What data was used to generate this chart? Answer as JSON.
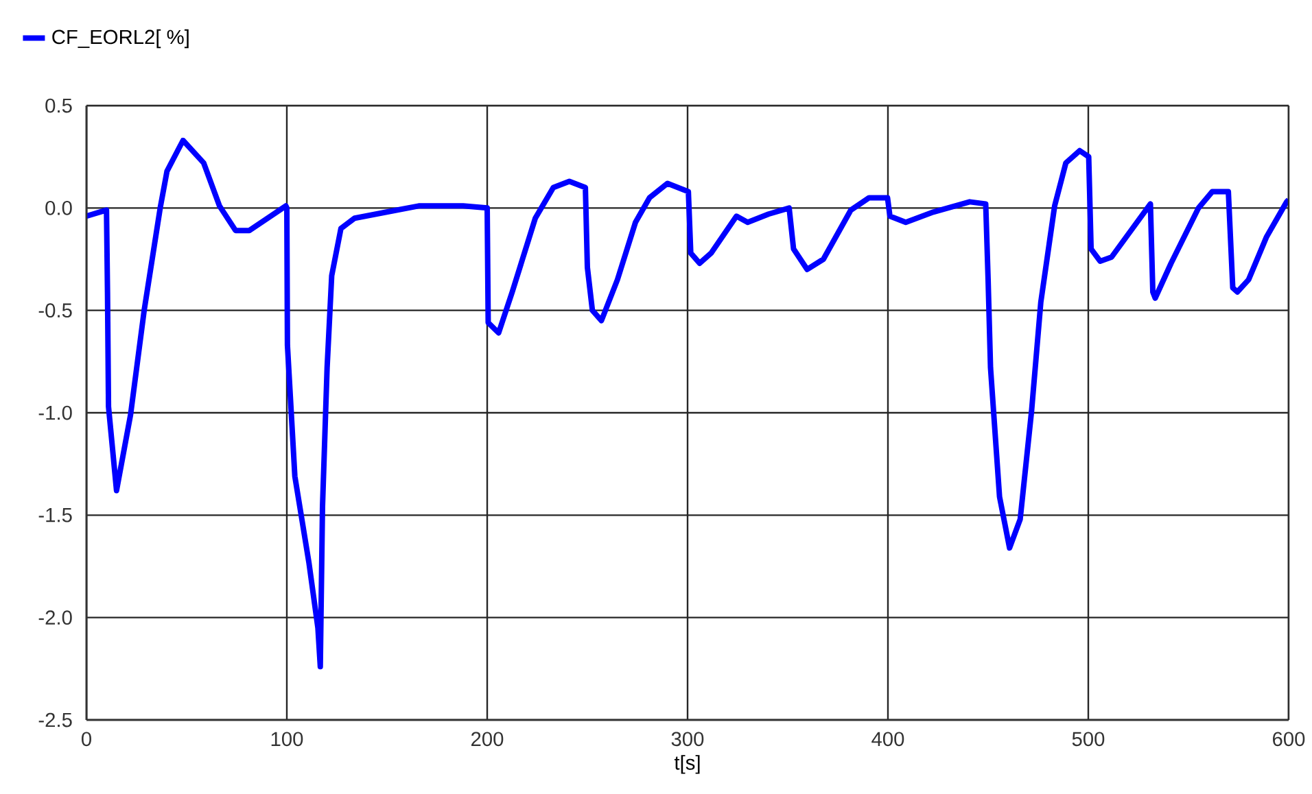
{
  "chart_data": {
    "type": "line",
    "xlabel": "t[s]",
    "x": [
      0,
      10,
      10.5,
      11,
      15,
      22,
      28.8,
      36.8,
      40.2,
      48.2,
      58.5,
      66.4,
      74.4,
      81.3,
      99.5,
      100,
      100.3,
      104,
      111,
      115.5,
      116.7,
      117.8,
      120.1,
      122.4,
      127,
      133.8,
      149.8,
      165.8,
      188,
      200,
      200.5,
      205.7,
      212.5,
      224,
      233,
      241,
      249,
      250,
      252.5,
      257,
      265,
      274,
      281,
      290,
      300.4,
      301.6,
      306,
      311.8,
      324.4,
      330,
      340.4,
      350.7,
      352.9,
      359.7,
      367.8,
      381.5,
      390.6,
      399.8,
      401,
      408.9,
      422.6,
      440.8,
      448.8,
      450,
      451.2,
      455.7,
      460.7,
      466,
      471.7,
      476.3,
      483.2,
      488.8,
      495.7,
      500.2,
      501.4,
      505.9,
      511.6,
      531,
      532.2,
      533.4,
      541.3,
      555,
      561.9,
      569.9,
      572.1,
      574.4,
      580,
      589,
      599,
      600
    ],
    "series": [
      {
        "name": "CF_EORL2[ %]",
        "color": "#0000ff",
        "values": [
          -0.04,
          -0.01,
          -0.41,
          -0.97,
          -1.38,
          -1.01,
          -0.5,
          0.0,
          0.18,
          0.33,
          0.22,
          0.01,
          -0.11,
          -0.11,
          0.01,
          0.0,
          -0.67,
          -1.31,
          -1.73,
          -2.05,
          -2.24,
          -1.46,
          -0.78,
          -0.33,
          -0.1,
          -0.05,
          -0.02,
          0.01,
          0.01,
          0.0,
          -0.56,
          -0.61,
          -0.41,
          -0.05,
          0.1,
          0.13,
          0.1,
          -0.29,
          -0.5,
          -0.55,
          -0.35,
          -0.07,
          0.05,
          0.12,
          0.08,
          -0.22,
          -0.27,
          -0.22,
          -0.04,
          -0.07,
          -0.03,
          0.0,
          -0.2,
          -0.3,
          -0.25,
          -0.01,
          0.05,
          0.05,
          -0.04,
          -0.07,
          -0.02,
          0.03,
          0.02,
          -0.35,
          -0.78,
          -1.41,
          -1.66,
          -1.52,
          -0.99,
          -0.46,
          0.01,
          0.22,
          0.28,
          0.25,
          -0.2,
          -0.26,
          -0.24,
          0.02,
          -0.41,
          -0.44,
          -0.27,
          0.0,
          0.08,
          0.08,
          -0.39,
          -0.41,
          -0.35,
          -0.14,
          0.03,
          0.04
        ]
      }
    ],
    "xlim": [
      0,
      600
    ],
    "ylim": [
      -2.5,
      0.5
    ],
    "xticks": [
      0,
      100,
      200,
      300,
      400,
      500,
      600
    ],
    "yticks": [
      0.5,
      {
        "value": 0,
        "label": "0.0"
      },
      -0.5,
      {
        "value": -1,
        "label": "-1.0"
      },
      -1.5,
      {
        "value": -2,
        "label": "-2.0"
      },
      -2.5
    ],
    "grid": true,
    "legend": "top left",
    "line_style": "solid"
  }
}
